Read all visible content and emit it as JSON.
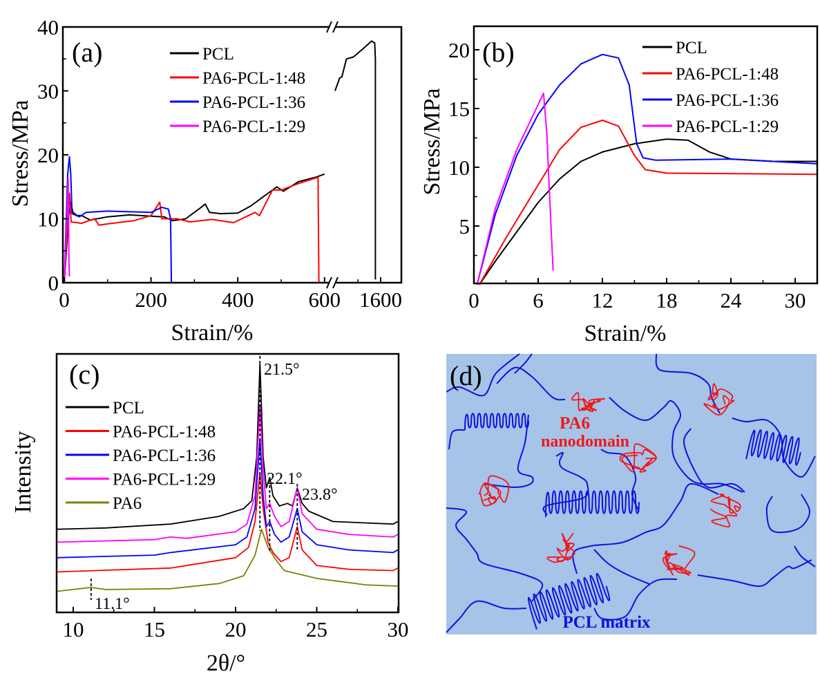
{
  "chart_data": [
    {
      "panel": "(a)",
      "type": "line",
      "xlabel": "Strain/%",
      "ylabel": "Stress/MPa",
      "ylim": [
        0,
        40
      ],
      "x_axis_break": [
        600,
        1390
      ],
      "xticks": [
        "0",
        "200",
        "400",
        "600",
        "1600"
      ],
      "yticks": [
        "0",
        "10",
        "20",
        "30",
        "40"
      ],
      "legend": "top-center",
      "colors": {
        "PCL": "#000000",
        "PA6-PCL-1:48": "#ff0000",
        "PA6-PCL-1:36": "#0000ff",
        "PA6-PCL-1:29": "#ff00ff"
      },
      "series": [
        {
          "name": "PCL",
          "points": [
            [
              0,
              0
            ],
            [
              5,
              5
            ],
            [
              10,
              10.5
            ],
            [
              15,
              12.5
            ],
            [
              20,
              11
            ],
            [
              30,
              10.5
            ],
            [
              40,
              10.5
            ],
            [
              60,
              9.8
            ],
            [
              100,
              10.3
            ],
            [
              150,
              10.6
            ],
            [
              200,
              10.4
            ],
            [
              230,
              10.3
            ],
            [
              250,
              9.7
            ],
            [
              280,
              10
            ],
            [
              310,
              11.5
            ],
            [
              325,
              12.3
            ],
            [
              335,
              11
            ],
            [
              360,
              10.8
            ],
            [
              400,
              10.9
            ],
            [
              430,
              12
            ],
            [
              470,
              14
            ],
            [
              490,
              15
            ],
            [
              505,
              14.3
            ],
            [
              540,
              15.8
            ],
            [
              580,
              16.5
            ],
            [
              600,
              17
            ],
            null,
            [
              1400,
              30
            ],
            [
              1420,
              32
            ],
            [
              1430,
              32.2
            ],
            [
              1450,
              35
            ],
            [
              1480,
              35.3
            ],
            [
              1520,
              36.5
            ],
            [
              1560,
              37.8
            ],
            [
              1574,
              37.5
            ],
            [
              1577,
              35
            ],
            [
              1577,
              0.5
            ]
          ]
        },
        {
          "name": "PA6-PCL-1:48",
          "points": [
            [
              0,
              0
            ],
            [
              8,
              10
            ],
            [
              12,
              14
            ],
            [
              16,
              9.5
            ],
            [
              40,
              9.3
            ],
            [
              60,
              9.8
            ],
            [
              70,
              10
            ],
            [
              80,
              9
            ],
            [
              100,
              9.2
            ],
            [
              160,
              9.7
            ],
            [
              200,
              10.5
            ],
            [
              220,
              12.6
            ],
            [
              225,
              10
            ],
            [
              260,
              10
            ],
            [
              290,
              9.5
            ],
            [
              340,
              9.9
            ],
            [
              390,
              9.4
            ],
            [
              440,
              11
            ],
            [
              450,
              10.5
            ],
            [
              480,
              14.5
            ],
            [
              500,
              14.5
            ],
            [
              540,
              15.5
            ],
            [
              585,
              16.5
            ],
            [
              587,
              0
            ]
          ]
        },
        {
          "name": "PA6-PCL-1:36",
          "points": [
            [
              0,
              0
            ],
            [
              8,
              17
            ],
            [
              12,
              19.7
            ],
            [
              15,
              17
            ],
            [
              18,
              10.8
            ],
            [
              35,
              10.3
            ],
            [
              50,
              11
            ],
            [
              100,
              11.2
            ],
            [
              200,
              11
            ],
            [
              225,
              11.8
            ],
            [
              240,
              11.5
            ],
            [
              245,
              10
            ],
            [
              247,
              0
            ]
          ]
        },
        {
          "name": "PA6-PCL-1:29",
          "points": [
            [
              0,
              0
            ],
            [
              6,
              10
            ],
            [
              9,
              16.3
            ],
            [
              11,
              3
            ],
            [
              12,
              1
            ]
          ]
        }
      ]
    },
    {
      "panel": "(b)",
      "type": "line",
      "xlabel": "Strain/%",
      "ylabel": "Stress/MPa",
      "xlim": [
        0,
        32
      ],
      "ylim": [
        0,
        22
      ],
      "xticks": [
        "0",
        "6",
        "12",
        "18",
        "24",
        "30"
      ],
      "yticks": [
        "5",
        "10",
        "15",
        "20"
      ],
      "legend": "top-right",
      "colors": {
        "PCL": "#000000",
        "PA6-PCL-1:48": "#ff0000",
        "PA6-PCL-1:36": "#0000ff",
        "PA6-PCL-1:29": "#ff00ff"
      },
      "series": [
        {
          "name": "PCL",
          "points": [
            [
              0.5,
              0
            ],
            [
              2,
              2
            ],
            [
              4,
              4.5
            ],
            [
              6,
              7
            ],
            [
              8,
              9
            ],
            [
              10,
              10.5
            ],
            [
              12,
              11.3
            ],
            [
              15,
              12
            ],
            [
              18,
              12.4
            ],
            [
              20,
              12.3
            ],
            [
              22,
              11.3
            ],
            [
              24,
              10.7
            ],
            [
              28,
              10.5
            ],
            [
              32,
              10.5
            ]
          ]
        },
        {
          "name": "PA6-PCL-1:48",
          "points": [
            [
              0.5,
              0
            ],
            [
              3,
              4
            ],
            [
              6,
              8.5
            ],
            [
              8,
              11.5
            ],
            [
              10,
              13.4
            ],
            [
              12,
              14
            ],
            [
              13.5,
              13.5
            ],
            [
              15,
              11
            ],
            [
              16,
              9.8
            ],
            [
              18,
              9.5
            ],
            [
              32,
              9.4
            ]
          ]
        },
        {
          "name": "PA6-PCL-1:36",
          "points": [
            [
              0.3,
              0
            ],
            [
              2,
              6
            ],
            [
              4,
              11
            ],
            [
              6,
              14.5
            ],
            [
              8,
              17
            ],
            [
              10,
              18.8
            ],
            [
              12,
              19.6
            ],
            [
              13.5,
              19.3
            ],
            [
              14.5,
              17
            ],
            [
              15.2,
              12
            ],
            [
              15.8,
              10.8
            ],
            [
              17,
              10.6
            ],
            [
              24,
              10.7
            ],
            [
              32,
              10.3
            ]
          ]
        },
        {
          "name": "PA6-PCL-1:29",
          "points": [
            [
              0.3,
              0
            ],
            [
              2,
              6.5
            ],
            [
              4,
              11.5
            ],
            [
              6.5,
              16.3
            ],
            [
              6.8,
              13
            ],
            [
              7.2,
              5
            ],
            [
              7.4,
              1.2
            ]
          ]
        }
      ]
    },
    {
      "panel": "(c)",
      "type": "line",
      "xlabel": "2θ/°",
      "ylabel": "Intensity",
      "xlim": [
        9,
        30
      ],
      "xticks": [
        "10",
        "15",
        "20",
        "25",
        "30"
      ],
      "legend": "left",
      "colors": {
        "PCL": "#000000",
        "PA6-PCL-1:48": "#ff0000",
        "PA6-PCL-1:36": "#0000ff",
        "PA6-PCL-1:29": "#ff00ff",
        "PA6": "#808000"
      },
      "annotations": [
        {
          "x": 21.5,
          "label": "21.5°"
        },
        {
          "x": 22.1,
          "label": "22.1°"
        },
        {
          "x": 23.8,
          "label": "23.8°"
        },
        {
          "x": 11.1,
          "label": "11.1°"
        }
      ],
      "series": [
        {
          "name": "PCL",
          "points": [
            [
              9,
              32
            ],
            [
              12,
              32.5
            ],
            [
              16,
              34
            ],
            [
              19,
              37
            ],
            [
              20.5,
              40
            ],
            [
              21,
              43
            ],
            [
              21.3,
              60
            ],
            [
              21.5,
              96
            ],
            [
              21.7,
              60
            ],
            [
              21.9,
              48
            ],
            [
              22.1,
              52
            ],
            [
              22.3,
              45
            ],
            [
              22.7,
              41
            ],
            [
              23.2,
              42
            ],
            [
              23.5,
              41
            ],
            [
              23.8,
              48
            ],
            [
              24.1,
              42
            ],
            [
              24.5,
              39
            ],
            [
              26,
              35
            ],
            [
              29.7,
              34
            ],
            [
              30,
              35
            ]
          ]
        },
        {
          "name": "PA6-PCL-1:48",
          "points": [
            [
              9,
              15.5
            ],
            [
              16,
              17
            ],
            [
              20,
              21
            ],
            [
              20.8,
              25
            ],
            [
              21.2,
              35
            ],
            [
              21.5,
              54
            ],
            [
              21.7,
              40
            ],
            [
              22,
              27
            ],
            [
              22.3,
              23
            ],
            [
              22.8,
              19.5
            ],
            [
              23.3,
              21
            ],
            [
              23.8,
              33
            ],
            [
              24.1,
              24
            ],
            [
              25,
              18
            ],
            [
              27,
              16.5
            ],
            [
              29.7,
              16
            ],
            [
              30,
              17
            ]
          ]
        },
        {
          "name": "PA6-PCL-1:36",
          "points": [
            [
              9,
              21
            ],
            [
              15,
              22
            ],
            [
              16,
              23
            ],
            [
              20,
              26
            ],
            [
              20.7,
              29
            ],
            [
              21.2,
              40
            ],
            [
              21.5,
              67
            ],
            [
              21.7,
              45
            ],
            [
              21.9,
              33
            ],
            [
              22.1,
              35
            ],
            [
              22.4,
              30
            ],
            [
              22.8,
              27
            ],
            [
              23.3,
              29
            ],
            [
              23.8,
              40
            ],
            [
              24.1,
              31
            ],
            [
              25,
              26
            ],
            [
              27,
              24
            ],
            [
              29.7,
              23
            ],
            [
              30,
              24
            ]
          ]
        },
        {
          "name": "PA6-PCL-1:29",
          "points": [
            [
              9,
              27
            ],
            [
              15,
              28
            ],
            [
              16,
              29
            ],
            [
              17,
              28.5
            ],
            [
              20,
              31
            ],
            [
              20.7,
              34
            ],
            [
              21.2,
              45
            ],
            [
              21.5,
              80
            ],
            [
              21.7,
              55
            ],
            [
              21.9,
              40
            ],
            [
              22.1,
              42
            ],
            [
              22.4,
              37
            ],
            [
              22.8,
              33
            ],
            [
              23.3,
              35
            ],
            [
              23.8,
              48
            ],
            [
              24.1,
              38
            ],
            [
              25,
              32
            ],
            [
              27,
              30
            ],
            [
              29.7,
              29
            ],
            [
              30,
              30
            ]
          ]
        },
        {
          "name": "PA6",
          "points": [
            [
              9,
              8
            ],
            [
              11.1,
              9.5
            ],
            [
              12,
              8.7
            ],
            [
              16,
              9
            ],
            [
              19,
              11
            ],
            [
              20.5,
              14
            ],
            [
              21.2,
              22
            ],
            [
              21.6,
              32
            ],
            [
              22,
              25
            ],
            [
              22.5,
              20
            ],
            [
              23,
              16
            ],
            [
              25,
              13
            ],
            [
              28,
              10.5
            ],
            [
              30,
              10
            ]
          ]
        }
      ]
    }
  ],
  "diagram_d": {
    "panel": "(d)",
    "nanodomain_label_1": "PA6",
    "nanodomain_label_2": "nanodomain",
    "matrix_label": "PCL matrix",
    "colors": {
      "background": "#a6c3e8",
      "pcl_chain": "#1010e0",
      "pa6_coil": "#f01818"
    }
  }
}
